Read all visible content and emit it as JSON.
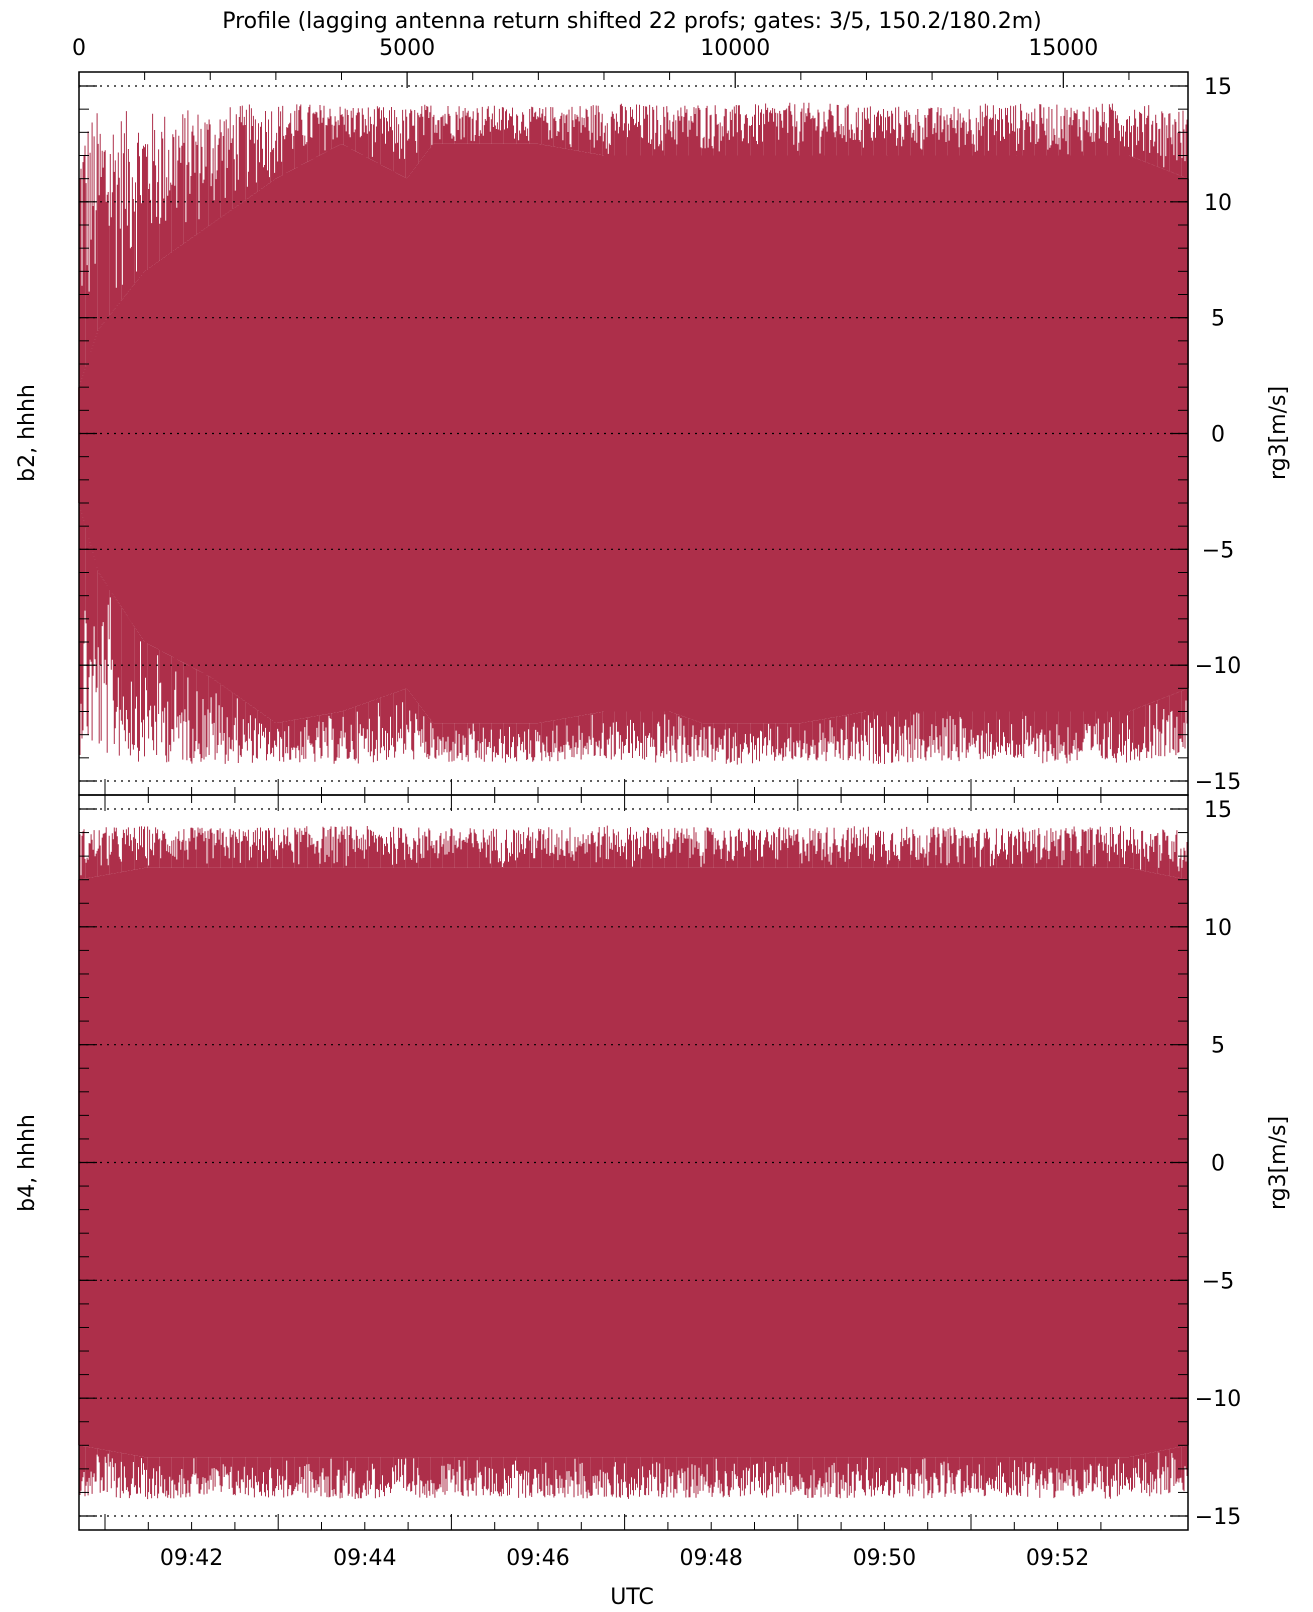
{
  "title": "Profile (lagging antenna return shifted 22 profs; gates: 3/5, 150.2/180.2m)",
  "top_axis": {
    "ticks": [
      "0",
      "5000",
      "10000",
      "15000"
    ],
    "values": [
      0,
      5000,
      10000,
      15000
    ],
    "range": [
      0,
      16900
    ]
  },
  "bottom_axis": {
    "label": "UTC",
    "ticks": [
      "09:42",
      "09:44",
      "09:46",
      "09:48",
      "09:50",
      "09:52"
    ]
  },
  "colors": {
    "trace": "#ad2f4a",
    "frame": "#000000",
    "grid": "#000000"
  },
  "chart_data": [
    {
      "type": "line",
      "title": "",
      "left_label": "b2, hhhh",
      "right_label": "rg3[m/s]",
      "ylim": [
        -15,
        15
      ],
      "yticks": [
        15,
        10,
        5,
        0,
        -5,
        -10,
        -15
      ],
      "ytick_labels": [
        "15",
        "10",
        "5",
        "0",
        "−5",
        "−10",
        "−15"
      ],
      "grid_lines": [
        15,
        10,
        5,
        0,
        -5,
        -10,
        -15
      ],
      "xlim_utc": [
        "09:41:15",
        "09:53:45"
      ],
      "series": [
        {
          "values_profile": [
            0,
            300,
            1000,
            2000,
            3000,
            4000,
            5000,
            5400,
            6000,
            7000,
            8000,
            9000,
            9500,
            10000,
            11000,
            12000,
            13000,
            14000,
            15000,
            16000,
            16900
          ],
          "upper_env": [
            13.8,
            14.0,
            13.9,
            14.1,
            14.3,
            14.2,
            14.1,
            14.3,
            14.2,
            14.1,
            14.3,
            14.2,
            14.3,
            14.2,
            14.3,
            14.2,
            14.1,
            14.3,
            14.2,
            14.3,
            14.0
          ],
          "lower_env": [
            -13.9,
            -14.0,
            -14.2,
            -14.3,
            -14.2,
            -14.3,
            -14.1,
            -14.2,
            -14.3,
            -14.2,
            -14.1,
            -14.3,
            -14.2,
            -14.3,
            -14.2,
            -14.3,
            -14.2,
            -14.1,
            -14.3,
            -14.2,
            -13.8
          ],
          "dense_upper": [
            2,
            4.5,
            7,
            9,
            11,
            12.5,
            11,
            12.5,
            12.5,
            12.5,
            12,
            12,
            12,
            12,
            12,
            12,
            12,
            12,
            12,
            12,
            11
          ],
          "dense_lower": [
            -3,
            -6,
            -9,
            -10.5,
            -12.5,
            -12,
            -11,
            -12.5,
            -12.5,
            -12.5,
            -12,
            -12,
            -12.5,
            -12.5,
            -12.5,
            -12,
            -12,
            -12,
            -12,
            -12,
            -11
          ]
        }
      ]
    },
    {
      "type": "line",
      "title": "",
      "left_label": "b4, hhhh",
      "right_label": "rg3[m/s]",
      "ylim": [
        -15,
        15
      ],
      "yticks": [
        15,
        10,
        5,
        0,
        -5,
        -10,
        -15
      ],
      "ytick_labels": [
        "15",
        "10",
        "5",
        "0",
        "−5",
        "−10",
        "−15"
      ],
      "grid_lines": [
        15,
        10,
        5,
        0,
        -5,
        -10,
        -15
      ],
      "xlim_utc": [
        "09:41:15",
        "09:53:45"
      ],
      "series": [
        {
          "values_profile": [
            0,
            1000,
            2000,
            4000,
            6000,
            8000,
            10000,
            12000,
            14000,
            16000,
            16900
          ],
          "upper_env": [
            14.2,
            14.3,
            14.2,
            14.3,
            14.2,
            14.3,
            14.2,
            14.3,
            14.2,
            14.3,
            14.1
          ],
          "lower_env": [
            -14.2,
            -14.3,
            -14.2,
            -14.3,
            -14.2,
            -14.3,
            -14.2,
            -14.3,
            -14.2,
            -14.3,
            -14.1
          ],
          "dense_upper": [
            12,
            12.5,
            12.5,
            12.5,
            12.5,
            12.5,
            12.5,
            12.5,
            12.5,
            12.5,
            12
          ],
          "dense_lower": [
            -12,
            -12.5,
            -12.5,
            -12.5,
            -12.5,
            -12.5,
            -12.5,
            -12.5,
            -12.5,
            -12.5,
            -12
          ]
        }
      ]
    }
  ]
}
